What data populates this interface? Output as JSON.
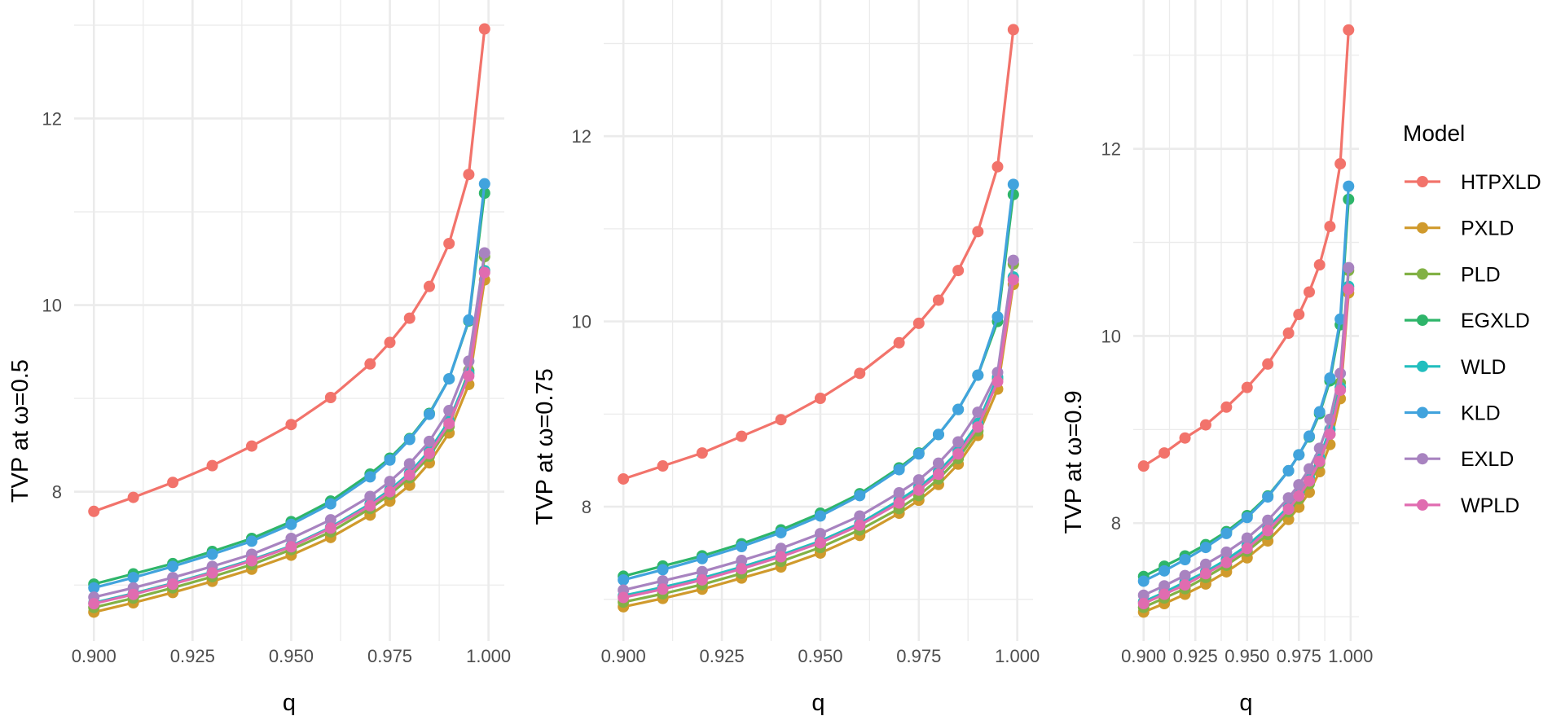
{
  "chart_data": [
    {
      "type": "line",
      "title": "",
      "xlabel": "q",
      "ylabel": "TVP at ω=0.5",
      "xlim": [
        0.895,
        1.004
      ],
      "ylim": [
        6.4,
        13.27
      ],
      "x_ticks": [
        "0.900",
        "0.925",
        "0.950",
        "0.975",
        "1.000"
      ],
      "y_ticks": [
        "8",
        "10",
        "12"
      ],
      "x": [
        0.9,
        0.91,
        0.92,
        0.93,
        0.94,
        0.95,
        0.96,
        0.97,
        0.975,
        0.98,
        0.985,
        0.99,
        0.995,
        0.999
      ],
      "series": [
        {
          "name": "HTPXLD",
          "values": [
            7.79,
            7.94,
            8.1,
            8.28,
            8.49,
            8.72,
            9.01,
            9.37,
            9.6,
            9.86,
            10.2,
            10.66,
            11.4,
            12.96
          ]
        },
        {
          "name": "PXLD",
          "values": [
            6.71,
            6.81,
            6.92,
            7.04,
            7.17,
            7.32,
            7.51,
            7.75,
            7.9,
            8.07,
            8.31,
            8.63,
            9.15,
            10.27
          ]
        },
        {
          "name": "PLD",
          "values": [
            6.76,
            6.86,
            6.97,
            7.09,
            7.22,
            7.38,
            7.57,
            7.82,
            7.97,
            8.15,
            8.38,
            8.7,
            9.3,
            10.52
          ]
        },
        {
          "name": "EGXLD",
          "values": [
            7.01,
            7.12,
            7.23,
            7.36,
            7.5,
            7.68,
            7.9,
            8.19,
            8.36,
            8.57,
            8.84,
            9.21,
            9.83,
            11.2
          ]
        },
        {
          "name": "WLD",
          "values": [
            6.81,
            6.91,
            7.02,
            7.14,
            7.27,
            7.42,
            7.62,
            7.87,
            8.02,
            8.2,
            8.44,
            8.76,
            9.27,
            10.37
          ]
        },
        {
          "name": "KLD",
          "values": [
            6.97,
            7.08,
            7.2,
            7.33,
            7.47,
            7.65,
            7.87,
            8.16,
            8.34,
            8.56,
            8.83,
            9.21,
            9.84,
            11.3
          ]
        },
        {
          "name": "EXLD",
          "values": [
            6.87,
            6.97,
            7.08,
            7.2,
            7.33,
            7.5,
            7.7,
            7.95,
            8.11,
            8.3,
            8.54,
            8.87,
            9.4,
            10.56
          ]
        },
        {
          "name": "WPLD",
          "values": [
            6.8,
            6.9,
            7.01,
            7.13,
            7.26,
            7.41,
            7.61,
            7.85,
            8.0,
            8.18,
            8.41,
            8.73,
            9.24,
            10.35
          ]
        }
      ]
    },
    {
      "type": "line",
      "title": "",
      "xlabel": "q",
      "ylabel": "TVP at ω=0.75",
      "xlim": [
        0.895,
        1.004
      ],
      "ylim": [
        6.55,
        13.47
      ],
      "x_ticks": [
        "0.900",
        "0.925",
        "0.950",
        "0.975",
        "1.000"
      ],
      "y_ticks": [
        "8",
        "10",
        "12"
      ],
      "x": [
        0.9,
        0.91,
        0.92,
        0.93,
        0.94,
        0.95,
        0.96,
        0.97,
        0.975,
        0.98,
        0.985,
        0.99,
        0.995,
        0.999
      ],
      "series": [
        {
          "name": "HTPXLD",
          "values": [
            8.3,
            8.44,
            8.58,
            8.76,
            8.94,
            9.17,
            9.44,
            9.77,
            9.98,
            10.23,
            10.55,
            10.97,
            11.67,
            13.15
          ]
        },
        {
          "name": "PXLD",
          "values": [
            6.92,
            7.01,
            7.11,
            7.23,
            7.35,
            7.5,
            7.69,
            7.93,
            8.07,
            8.24,
            8.46,
            8.77,
            9.27,
            10.4
          ]
        },
        {
          "name": "PLD",
          "values": [
            6.97,
            7.06,
            7.16,
            7.28,
            7.41,
            7.56,
            7.75,
            7.98,
            8.12,
            8.3,
            8.52,
            8.82,
            9.38,
            10.62
          ]
        },
        {
          "name": "EGXLD",
          "values": [
            7.25,
            7.36,
            7.47,
            7.6,
            7.75,
            7.93,
            8.14,
            8.42,
            8.58,
            8.78,
            9.05,
            9.42,
            10.0,
            11.37
          ]
        },
        {
          "name": "WLD",
          "values": [
            7.04,
            7.13,
            7.23,
            7.35,
            7.48,
            7.63,
            7.82,
            8.07,
            8.21,
            8.38,
            8.6,
            8.9,
            9.4,
            10.48
          ]
        },
        {
          "name": "KLD",
          "values": [
            7.21,
            7.32,
            7.44,
            7.57,
            7.72,
            7.9,
            8.12,
            8.4,
            8.57,
            8.78,
            9.05,
            9.42,
            10.05,
            11.48
          ]
        },
        {
          "name": "EXLD",
          "values": [
            7.1,
            7.2,
            7.3,
            7.42,
            7.55,
            7.71,
            7.9,
            8.15,
            8.29,
            8.47,
            8.7,
            9.02,
            9.45,
            10.66
          ]
        },
        {
          "name": "WPLD",
          "values": [
            7.02,
            7.11,
            7.21,
            7.33,
            7.46,
            7.61,
            7.8,
            8.04,
            8.18,
            8.35,
            8.57,
            8.86,
            9.35,
            10.45
          ]
        }
      ]
    },
    {
      "type": "line",
      "title": "",
      "xlabel": "q",
      "ylabel": "TVP at ω=0.9",
      "xlim": [
        0.895,
        1.004
      ],
      "ylim": [
        6.74,
        13.59
      ],
      "x_ticks": [
        "0.900",
        "0.925",
        "0.950",
        "0.975",
        "1.000"
      ],
      "y_ticks": [
        "8",
        "10",
        "12"
      ],
      "x": [
        0.9,
        0.91,
        0.92,
        0.93,
        0.94,
        0.95,
        0.96,
        0.97,
        0.975,
        0.98,
        0.985,
        0.99,
        0.995,
        0.999
      ],
      "series": [
        {
          "name": "HTPXLD",
          "values": [
            8.61,
            8.75,
            8.91,
            9.05,
            9.24,
            9.45,
            9.7,
            10.03,
            10.23,
            10.47,
            10.76,
            11.17,
            11.84,
            13.27
          ]
        },
        {
          "name": "PXLD",
          "values": [
            7.05,
            7.14,
            7.24,
            7.35,
            7.48,
            7.63,
            7.81,
            8.04,
            8.17,
            8.33,
            8.55,
            8.84,
            9.33,
            10.46
          ]
        },
        {
          "name": "PLD",
          "values": [
            7.1,
            7.2,
            7.3,
            7.42,
            7.55,
            7.7,
            7.88,
            8.12,
            8.26,
            8.42,
            8.64,
            8.95,
            9.5,
            10.7
          ]
        },
        {
          "name": "EGXLD",
          "values": [
            7.43,
            7.54,
            7.65,
            7.77,
            7.91,
            8.08,
            8.29,
            8.56,
            8.73,
            8.92,
            9.17,
            9.52,
            10.12,
            11.46
          ]
        },
        {
          "name": "WLD",
          "values": [
            7.16,
            7.26,
            7.37,
            7.48,
            7.61,
            7.76,
            7.95,
            8.18,
            8.32,
            8.49,
            8.7,
            9.0,
            9.45,
            10.53
          ]
        },
        {
          "name": "KLD",
          "values": [
            7.38,
            7.49,
            7.61,
            7.74,
            7.89,
            8.06,
            8.28,
            8.56,
            8.73,
            8.93,
            9.19,
            9.55,
            10.18,
            11.6
          ]
        },
        {
          "name": "EXLD",
          "values": [
            7.23,
            7.33,
            7.44,
            7.56,
            7.69,
            7.84,
            8.03,
            8.27,
            8.41,
            8.58,
            8.8,
            9.11,
            9.6,
            10.73
          ]
        },
        {
          "name": "WPLD",
          "values": [
            7.14,
            7.24,
            7.34,
            7.46,
            7.58,
            7.73,
            7.92,
            8.15,
            8.29,
            8.45,
            8.66,
            8.95,
            9.42,
            10.5
          ]
        }
      ]
    }
  ],
  "legend": {
    "title": "Model",
    "placement": "right",
    "items": [
      "HTPXLD",
      "PXLD",
      "PLD",
      "EGXLD",
      "WLD",
      "KLD",
      "EXLD",
      "WPLD"
    ]
  },
  "colors": {
    "HTPXLD": "#F2736B",
    "PXLD": "#D09A2C",
    "PLD": "#82B145",
    "EGXLD": "#2EB56A",
    "WLD": "#22BEBE",
    "KLD": "#41A3DD",
    "EXLD": "#A883C0",
    "WPLD": "#E06CB0",
    "grid": "#EBEBEB"
  }
}
